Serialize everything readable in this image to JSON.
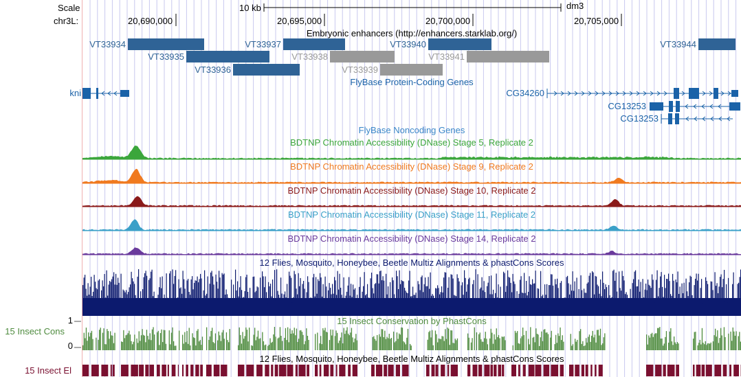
{
  "ruler": {
    "scale_label": "Scale",
    "chrom_label": "chr3L:",
    "scale_bar": "10 kb",
    "assembly": "dm3",
    "positions": [
      "20,690,000",
      "20,695,000",
      "20,700,000",
      "20,705,000"
    ]
  },
  "tracks": {
    "enhancers": {
      "title": "Embryonic enhancers (http://enhancers.starklab.org/)",
      "items": [
        {
          "label": "VT33934",
          "active": true
        },
        {
          "label": "VT33935",
          "active": true
        },
        {
          "label": "VT33936",
          "active": true
        },
        {
          "label": "VT33937",
          "active": true
        },
        {
          "label": "VT33938",
          "active": false
        },
        {
          "label": "VT33939",
          "active": false
        },
        {
          "label": "VT33940",
          "active": true
        },
        {
          "label": "VT33941",
          "active": false
        },
        {
          "label": "VT33944",
          "active": true
        }
      ]
    },
    "flybase_coding": {
      "title": "FlyBase Protein-Coding Genes",
      "genes": [
        "kni",
        "CG34260",
        "CG13253",
        "CG13253"
      ]
    },
    "flybase_noncoding": {
      "title": "FlyBase Noncoding Genes"
    },
    "dnase": [
      {
        "title": "BDTNP Chromatin Accessibility (DNase) Stage 5, Replicate 2",
        "color": "#3ba63b"
      },
      {
        "title": "BDTNP Chromatin Accessibility (DNase) Stage 9, Replicate 2",
        "color": "#f07a1f"
      },
      {
        "title": "BDTNP Chromatin Accessibility (DNase) Stage 10, Replicate 2",
        "color": "#8b1a1a"
      },
      {
        "title": "BDTNP Chromatin Accessibility (DNase) Stage 11, Replicate 2",
        "color": "#3aa0c8"
      },
      {
        "title": "BDTNP Chromatin Accessibility (DNase) Stage 14, Replicate 2",
        "color": "#6a3a9c"
      }
    ],
    "multiz": {
      "title": "12 Flies, Mosquito, Honeybee, Beetle Multiz Alignments & phastCons Scores",
      "color": "#0c1a6e"
    },
    "cons": {
      "title": "15 Insect Conservation by PhastCons",
      "side_label": "15 Insect Cons",
      "y_max": "1",
      "y_min": "0",
      "color": "#4e8b3e"
    },
    "elements": {
      "title": "12 Flies, Mosquito, Honeybee, Beetle Multiz Alignments & phastCons Scores",
      "side_label": "15 Insect El",
      "color": "#7a1030"
    }
  },
  "colors": {
    "enhancer_active": "#2f6396",
    "enhancer_inactive": "#999999",
    "gene": "#1a62a8",
    "gridline": "#c8c8ee",
    "left_rule": "#f0b0b0"
  }
}
